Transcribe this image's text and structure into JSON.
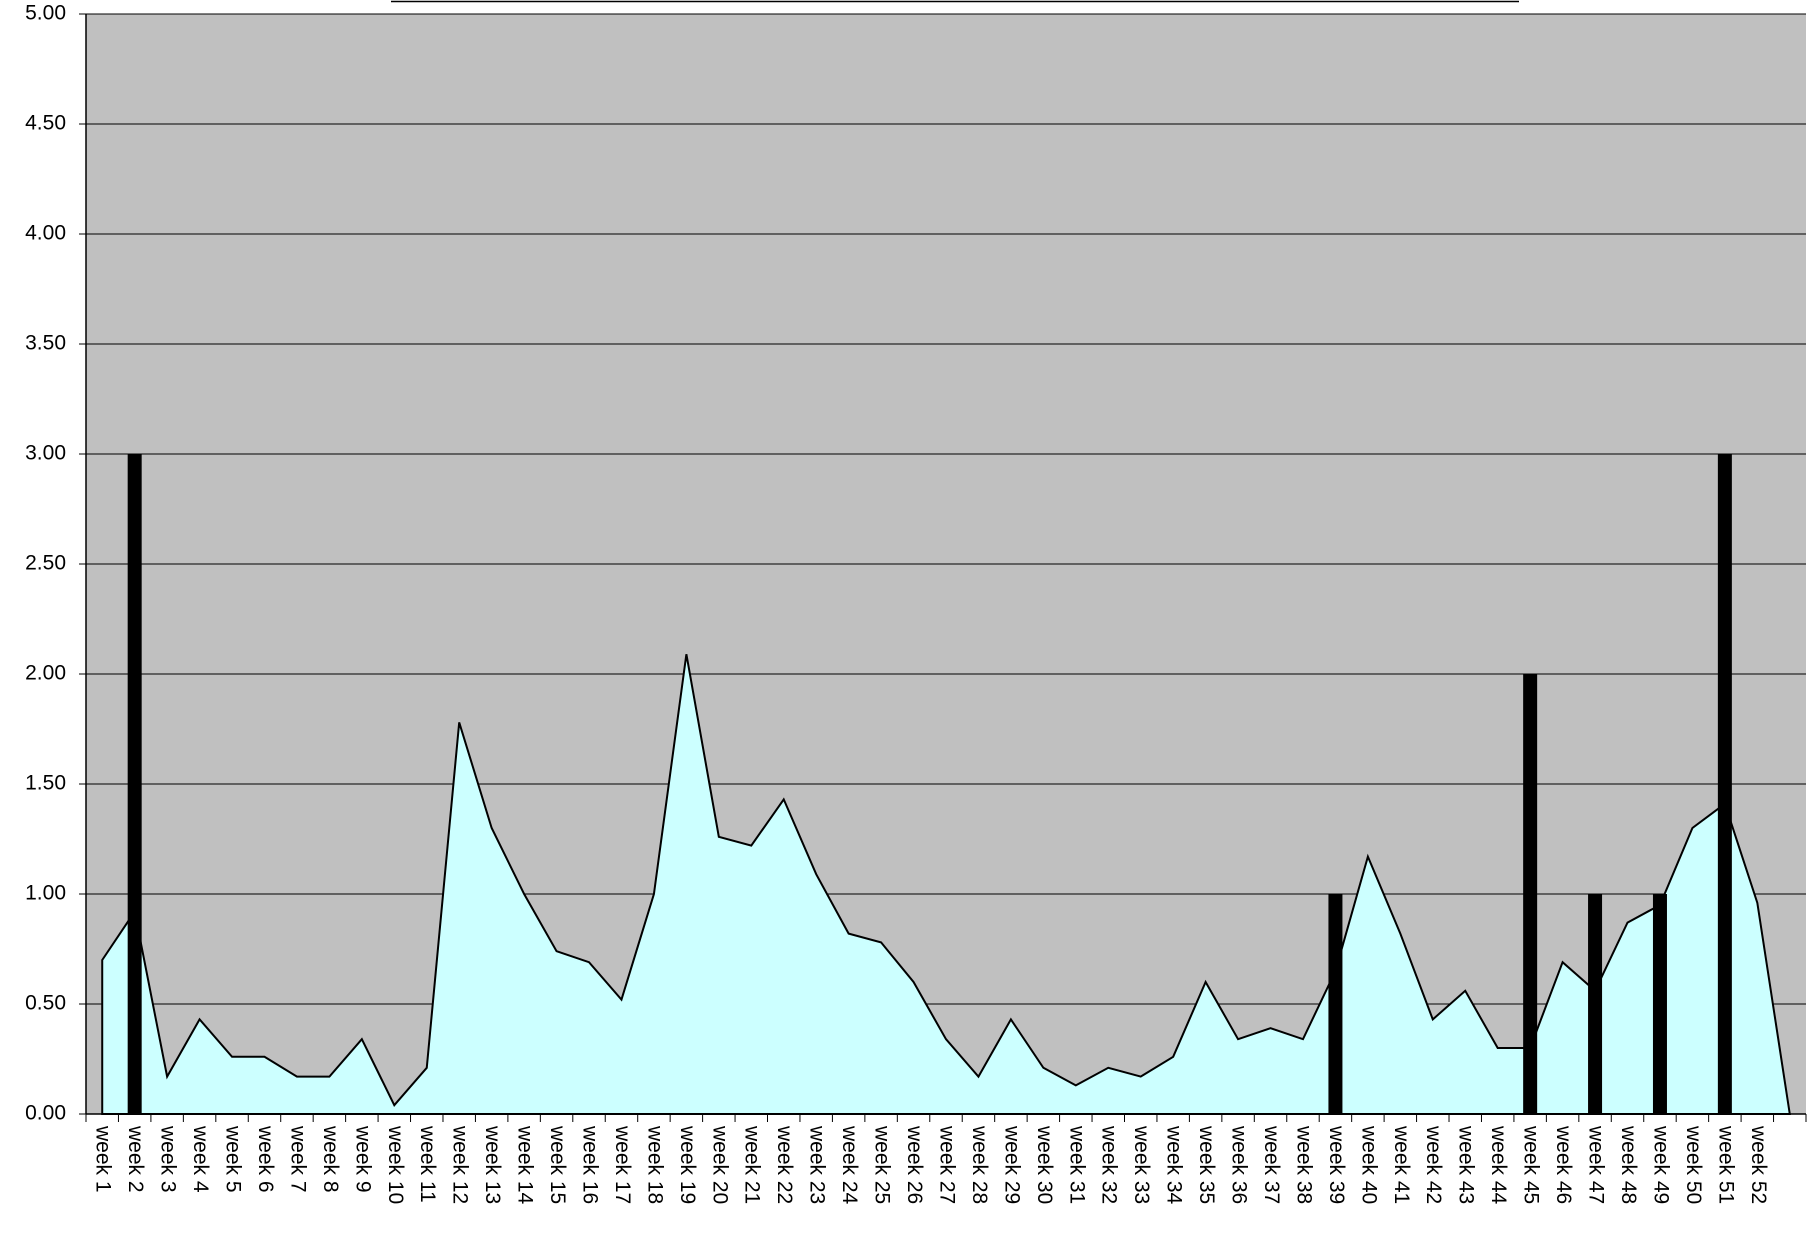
{
  "chart_data": {
    "type": "area-bar",
    "categories": [
      "week 1",
      "week 2",
      "week 3",
      "week 4",
      "week 5",
      "week 6",
      "week 7",
      "week 8",
      "week 9",
      "week 10",
      "week 11",
      "week 12",
      "week 13",
      "week 14",
      "week 15",
      "week 16",
      "week 17",
      "week 18",
      "week 19",
      "week 20",
      "week 21",
      "week 22",
      "week 23",
      "week 24",
      "week 25",
      "week 26",
      "week 27",
      "week 28",
      "week 29",
      "week 30",
      "week 31",
      "week 32",
      "week 33",
      "week 34",
      "week 35",
      "week 36",
      "week 37",
      "week 38",
      "week 39",
      "week 40",
      "week 41",
      "week 42",
      "week 43",
      "week 44",
      "week 45",
      "week 46",
      "week 47",
      "week 48",
      "week 49",
      "week 50",
      "week 51",
      "week 52",
      null
    ],
    "series": [
      {
        "type": "area",
        "color": "#ccffff",
        "values": [
          0.7,
          0.92,
          0.17,
          0.43,
          0.26,
          0.26,
          0.17,
          0.17,
          0.34,
          0.04,
          0.21,
          1.78,
          1.3,
          1.0,
          0.74,
          0.69,
          0.52,
          1.0,
          2.09,
          1.26,
          1.22,
          1.43,
          1.09,
          0.82,
          0.78,
          0.6,
          0.34,
          0.17,
          0.43,
          0.21,
          0.13,
          0.21,
          0.17,
          0.26,
          0.6,
          0.34,
          0.39,
          0.34,
          0.65,
          1.17,
          0.82,
          0.43,
          0.56,
          0.3,
          0.3,
          0.69,
          0.56,
          0.87,
          0.95,
          1.3,
          1.41,
          0.96,
          0
        ]
      },
      {
        "type": "bar",
        "color": "#000000",
        "values": [
          null,
          3,
          null,
          null,
          null,
          null,
          null,
          null,
          null,
          null,
          null,
          null,
          null,
          null,
          null,
          null,
          null,
          null,
          null,
          null,
          null,
          null,
          null,
          null,
          null,
          null,
          null,
          null,
          null,
          null,
          null,
          null,
          null,
          null,
          null,
          null,
          null,
          null,
          1,
          null,
          null,
          null,
          null,
          null,
          2,
          null,
          1,
          null,
          1,
          null,
          3,
          null,
          null
        ]
      }
    ],
    "ylim": [
      0,
      5
    ],
    "yticks": [
      {
        "value": 0,
        "label": "0.00"
      },
      {
        "value": 0.5,
        "label": "0.50"
      },
      {
        "value": 1,
        "label": "1.00"
      },
      {
        "value": 1.5,
        "label": "1.50"
      },
      {
        "value": 2,
        "label": "2.00"
      },
      {
        "value": 2.5,
        "label": "2.50"
      },
      {
        "value": 3,
        "label": "3.00"
      },
      {
        "value": 3.5,
        "label": "3.50"
      },
      {
        "value": 4,
        "label": "4.00"
      },
      {
        "value": 4.5,
        "label": "4.50"
      },
      {
        "value": 5,
        "label": "5.00"
      }
    ],
    "grid": true,
    "background": "#c0c0c0"
  }
}
